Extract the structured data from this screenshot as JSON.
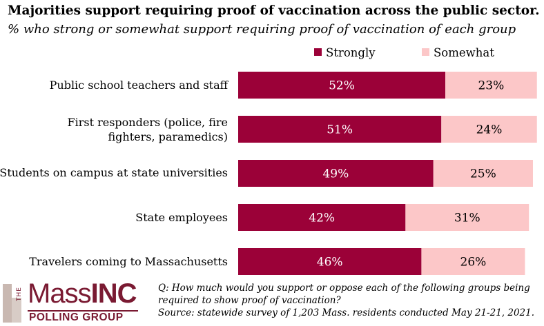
{
  "header": {
    "title": "Majorities support requiring proof of vaccination across the public sector.",
    "subtitle": "% who strong or somewhat support requiring proof of vaccination of each group"
  },
  "colors": {
    "strongly": "#9b0138",
    "somewhat": "#fcc7c8"
  },
  "chart_data": {
    "type": "bar",
    "orientation": "horizontal",
    "stacked": true,
    "categories": [
      "Public school teachers and staff",
      "First responders (police, fire fighters, paramedics)",
      "Students on campus at state universities",
      "State employees",
      "Travelers coming to Massachusetts"
    ],
    "series": [
      {
        "name": "Strongly",
        "values": [
          52,
          51,
          49,
          42,
          46
        ],
        "labels": [
          "52%",
          "51%",
          "49%",
          "42%",
          "46%"
        ]
      },
      {
        "name": "Somewhat",
        "values": [
          23,
          24,
          25,
          31,
          26
        ],
        "labels": [
          "23%",
          "24%",
          "25%",
          "31%",
          "26%"
        ]
      }
    ],
    "xlim": [
      0,
      75
    ],
    "grid": false,
    "legend": "top"
  },
  "logo": {
    "the": "THE",
    "mass": "Mass",
    "inc": "INC",
    "sub": "POLLING GROUP"
  },
  "footnote": {
    "line1": "Q: How much would you support or oppose each of the following groups being",
    "line2": "required to show proof of vaccination?",
    "line3": "Source: statewide survey of 1,203 Mass. residents conducted May 21-21, 2021."
  }
}
